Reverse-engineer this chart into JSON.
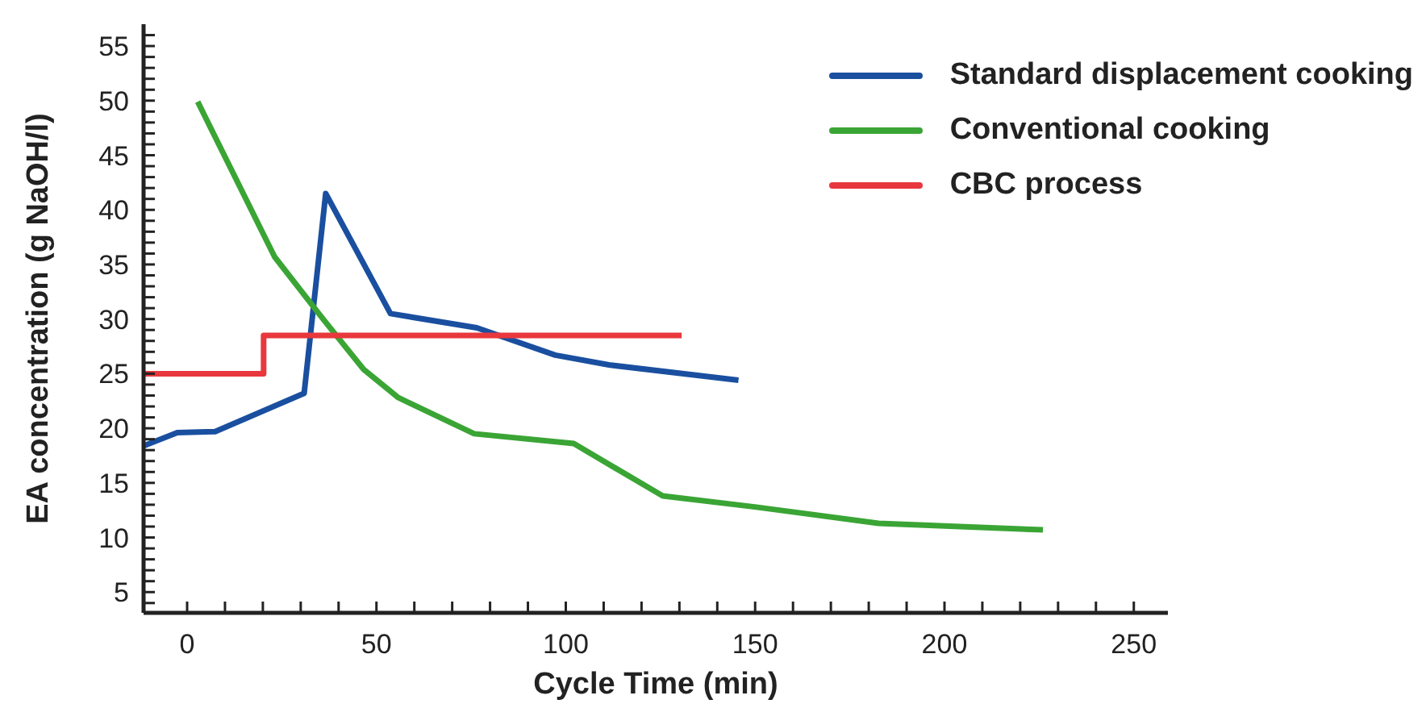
{
  "chart_data": {
    "type": "line",
    "xlabel": "Cycle Time (min)",
    "ylabel": "EA concentration (g NaOH/l)",
    "xlim": [
      -11.5,
      259
    ],
    "xticks": [
      0,
      {
        "value": 10,
        "label": null
      },
      {
        "value": 20,
        "label": null
      },
      {
        "value": 30,
        "label": null
      },
      {
        "value": 40,
        "label": null
      },
      50,
      {
        "value": 60,
        "label": null
      },
      {
        "value": 70,
        "label": null
      },
      {
        "value": 80,
        "label": null
      },
      {
        "value": 90,
        "label": null
      },
      100,
      {
        "value": 110,
        "label": null
      },
      {
        "value": 120,
        "label": null
      },
      {
        "value": 130,
        "label": null
      },
      {
        "value": 140,
        "label": null
      },
      150,
      {
        "value": 160,
        "label": null
      },
      {
        "value": 170,
        "label": null
      },
      {
        "value": 180,
        "label": null
      },
      {
        "value": 190,
        "label": null
      },
      200,
      {
        "value": 210,
        "label": null
      },
      {
        "value": 220,
        "label": null
      },
      {
        "value": 230,
        "label": null
      },
      {
        "value": 240,
        "label": null
      },
      250
    ],
    "ylim": [
      3.1,
      57
    ],
    "yticks": [
      {
        "value": 4,
        "label": null
      },
      5,
      {
        "value": 6,
        "label": null
      },
      {
        "value": 7,
        "label": null
      },
      {
        "value": 8,
        "label": null
      },
      {
        "value": 9,
        "label": null
      },
      10,
      {
        "value": 11,
        "label": null
      },
      {
        "value": 12,
        "label": null
      },
      {
        "value": 13,
        "label": null
      },
      {
        "value": 14,
        "label": null
      },
      15,
      {
        "value": 16,
        "label": null
      },
      {
        "value": 17,
        "label": null
      },
      {
        "value": 18,
        "label": null
      },
      {
        "value": 19,
        "label": null
      },
      20,
      {
        "value": 21,
        "label": null
      },
      {
        "value": 22,
        "label": null
      },
      {
        "value": 23,
        "label": null
      },
      {
        "value": 24,
        "label": null
      },
      25,
      {
        "value": 26,
        "label": null
      },
      {
        "value": 27,
        "label": null
      },
      {
        "value": 28,
        "label": null
      },
      {
        "value": 29,
        "label": null
      },
      30,
      {
        "value": 31,
        "label": null
      },
      {
        "value": 32,
        "label": null
      },
      {
        "value": 33,
        "label": null
      },
      {
        "value": 34,
        "label": null
      },
      35,
      {
        "value": 36,
        "label": null
      },
      {
        "value": 37,
        "label": null
      },
      {
        "value": 38,
        "label": null
      },
      {
        "value": 39,
        "label": null
      },
      40,
      {
        "value": 41,
        "label": null
      },
      {
        "value": 42,
        "label": null
      },
      {
        "value": 43,
        "label": null
      },
      {
        "value": 44,
        "label": null
      },
      45,
      {
        "value": 46,
        "label": null
      },
      {
        "value": 47,
        "label": null
      },
      {
        "value": 48,
        "label": null
      },
      {
        "value": 49,
        "label": null
      },
      50,
      {
        "value": 51,
        "label": null
      },
      {
        "value": 52,
        "label": null
      },
      {
        "value": 53,
        "label": null
      },
      {
        "value": 54,
        "label": null
      },
      55,
      {
        "value": 56,
        "label": null
      }
    ],
    "grid": false,
    "legend": "top right",
    "marker": "none",
    "line_style": "solid",
    "series": [
      {
        "name": "Standard displacement cooking",
        "color": "#1a4fa0",
        "x": [
          -11.4,
          -2.6,
          7.4,
          30.9,
          36.6,
          53.7,
          76.5,
          97.2,
          111.4,
          145.6
        ],
        "values": [
          18.4,
          19.6,
          19.7,
          23.2,
          41.5,
          30.5,
          29.2,
          26.7,
          25.8,
          24.4
        ]
      },
      {
        "name": "Conventional cooking",
        "color": "#3aa535",
        "x": [
          2.8,
          23.1,
          35.9,
          46.6,
          55.8,
          75.8,
          102.1,
          125.6,
          149.9,
          182.6,
          226
        ],
        "values": [
          49.9,
          35.7,
          30,
          25.4,
          22.8,
          19.5,
          18.6,
          13.8,
          12.8,
          11.3,
          10.7
        ]
      },
      {
        "name": "CBC process",
        "type": "step",
        "color": "#e8383d",
        "x": [
          -11.5,
          20.2,
          130.6
        ],
        "values": [
          25,
          28.5,
          28.5
        ]
      }
    ]
  }
}
